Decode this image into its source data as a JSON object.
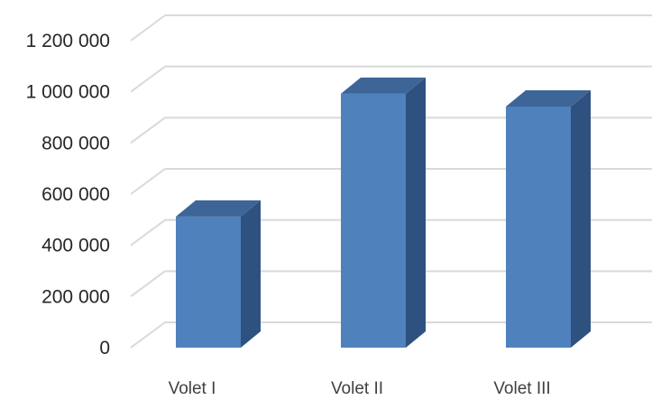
{
  "chart_data": {
    "type": "bar",
    "style": "3d-column",
    "categories": [
      "Volet I",
      "Volet II",
      "Volet III"
    ],
    "values": [
      590000,
      1070000,
      1020000
    ],
    "ylim": [
      0,
      1200000
    ],
    "yticks": [
      0,
      200000,
      400000,
      600000,
      800000,
      1000000,
      1200000
    ],
    "ytick_labels": [
      "0",
      "200 000",
      "400 000",
      "600 000",
      "800 000",
      "1 000 000",
      "1 200 000"
    ],
    "grid": true,
    "legend": "none",
    "colors": {
      "bar_front": "#4f81bd",
      "bar_side": "#2e5180",
      "bar_top": "#3d6598",
      "grid": "#d9d9d9"
    }
  }
}
